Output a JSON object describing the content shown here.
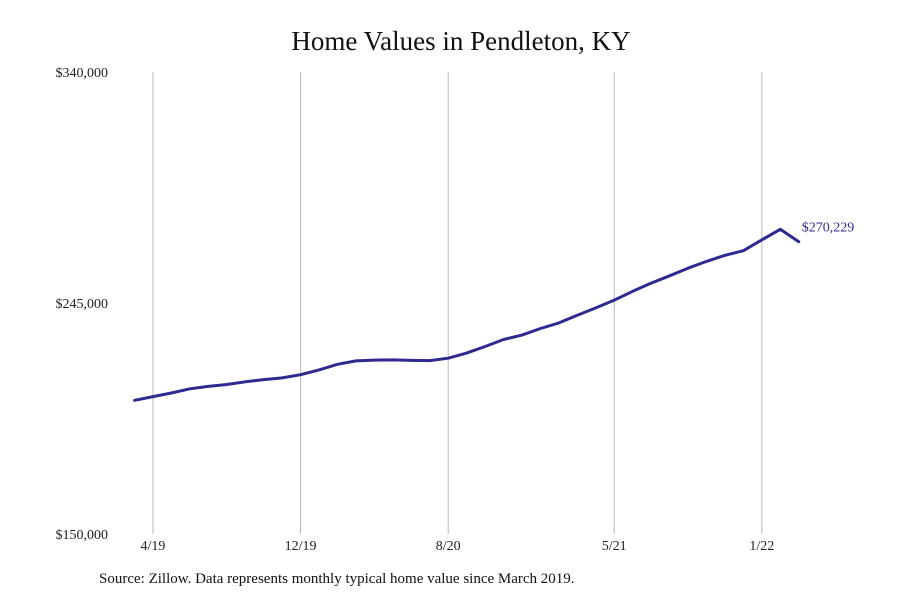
{
  "chart_data": {
    "type": "line",
    "title": "Home Values in Pendleton, KY",
    "xlabel": "",
    "ylabel": "",
    "x_start": "2019-03",
    "x_tick_labels": [
      "4/19",
      "12/19",
      "8/20",
      "5/21",
      "1/22"
    ],
    "x_tick_dates": [
      "2019-04",
      "2019-12",
      "2020-08",
      "2021-05",
      "2022-01"
    ],
    "ylim": [
      150000,
      340000
    ],
    "y_tick_values": [
      150000,
      245000,
      340000
    ],
    "y_tick_labels": [
      "$150,000",
      "$245,000",
      "$340,000"
    ],
    "grid": {
      "vertical": true,
      "horizontal": false
    },
    "series": [
      {
        "color": "#2e2a8f",
        "x": [
          "2019-03",
          "2019-04",
          "2019-05",
          "2019-06",
          "2019-07",
          "2019-08",
          "2019-09",
          "2019-10",
          "2019-11",
          "2019-12",
          "2020-01",
          "2020-02",
          "2020-03",
          "2020-04",
          "2020-05",
          "2020-06",
          "2020-07",
          "2020-08",
          "2020-09",
          "2020-10",
          "2020-11",
          "2020-12",
          "2021-01",
          "2021-02",
          "2021-03",
          "2021-04",
          "2021-05",
          "2021-06",
          "2021-07",
          "2021-08",
          "2021-09",
          "2021-10",
          "2021-11",
          "2021-12",
          "2022-01",
          "2022-02",
          "2022-03"
        ],
        "values": [
          205000,
          206500,
          208000,
          209700,
          210700,
          211500,
          212600,
          213500,
          214200,
          215500,
          217500,
          219800,
          221200,
          221500,
          221600,
          221400,
          221300,
          222300,
          224400,
          227100,
          230000,
          231800,
          234500,
          236800,
          240000,
          243000,
          246200,
          249800,
          253200,
          256200,
          259300,
          262100,
          264600,
          266500,
          271000,
          275300,
          270229
        ]
      }
    ],
    "annotation": {
      "label": "$270,229"
    }
  },
  "footer": {
    "source": "Source: Zillow. Data represents monthly typical home value since March 2019."
  }
}
